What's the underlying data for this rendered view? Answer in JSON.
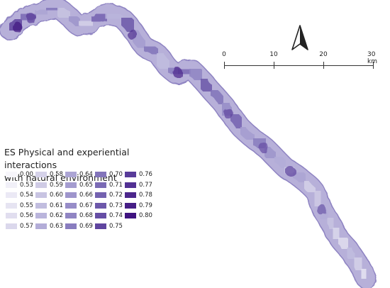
{
  "north_arrow": {
    "icon": "north-arrow-icon"
  },
  "scale_bar": {
    "labels": [
      "0",
      "10",
      "20",
      "30 km"
    ]
  },
  "legend": {
    "title_line1": "ES Physical and experiential interactions",
    "title_line2": "with natural environment",
    "items": [
      {
        "label": "0.00",
        "color": "#f7f6fb"
      },
      {
        "label": "0.53",
        "color": "#f1f0f8"
      },
      {
        "label": "0.54",
        "color": "#ebe9f5"
      },
      {
        "label": "0.55",
        "color": "#e6e4f2"
      },
      {
        "label": "0.56",
        "color": "#e1deef"
      },
      {
        "label": "0.57",
        "color": "#dbd8ec"
      },
      {
        "label": "0.58",
        "color": "#d5d2e9"
      },
      {
        "label": "0.59",
        "color": "#cfcbe5"
      },
      {
        "label": "0.60",
        "color": "#c8c4e2"
      },
      {
        "label": "0.61",
        "color": "#c1bddf"
      },
      {
        "label": "0.62",
        "color": "#bab5dc"
      },
      {
        "label": "0.63",
        "color": "#b3add8"
      },
      {
        "label": "0.64",
        "color": "#aca5d4"
      },
      {
        "label": "0.65",
        "color": "#a59dd0"
      },
      {
        "label": "0.66",
        "color": "#9e95cc"
      },
      {
        "label": "0.67",
        "color": "#978dc8"
      },
      {
        "label": "0.68",
        "color": "#9085c3"
      },
      {
        "label": "0.69",
        "color": "#897dbf"
      },
      {
        "label": "0.70",
        "color": "#8274ba"
      },
      {
        "label": "0.71",
        "color": "#7b6bb5"
      },
      {
        "label": "0.72",
        "color": "#7462b0"
      },
      {
        "label": "0.73",
        "color": "#6d58aa"
      },
      {
        "label": "0.74",
        "color": "#664ea5"
      },
      {
        "label": "0.75",
        "color": "#5f459f"
      },
      {
        "label": "0.76",
        "color": "#583b99"
      },
      {
        "label": "0.77",
        "color": "#523193"
      },
      {
        "label": "0.78",
        "color": "#4c278c"
      },
      {
        "label": "0.79",
        "color": "#461e86"
      },
      {
        "label": "0.80",
        "color": "#3f1380"
      }
    ]
  }
}
